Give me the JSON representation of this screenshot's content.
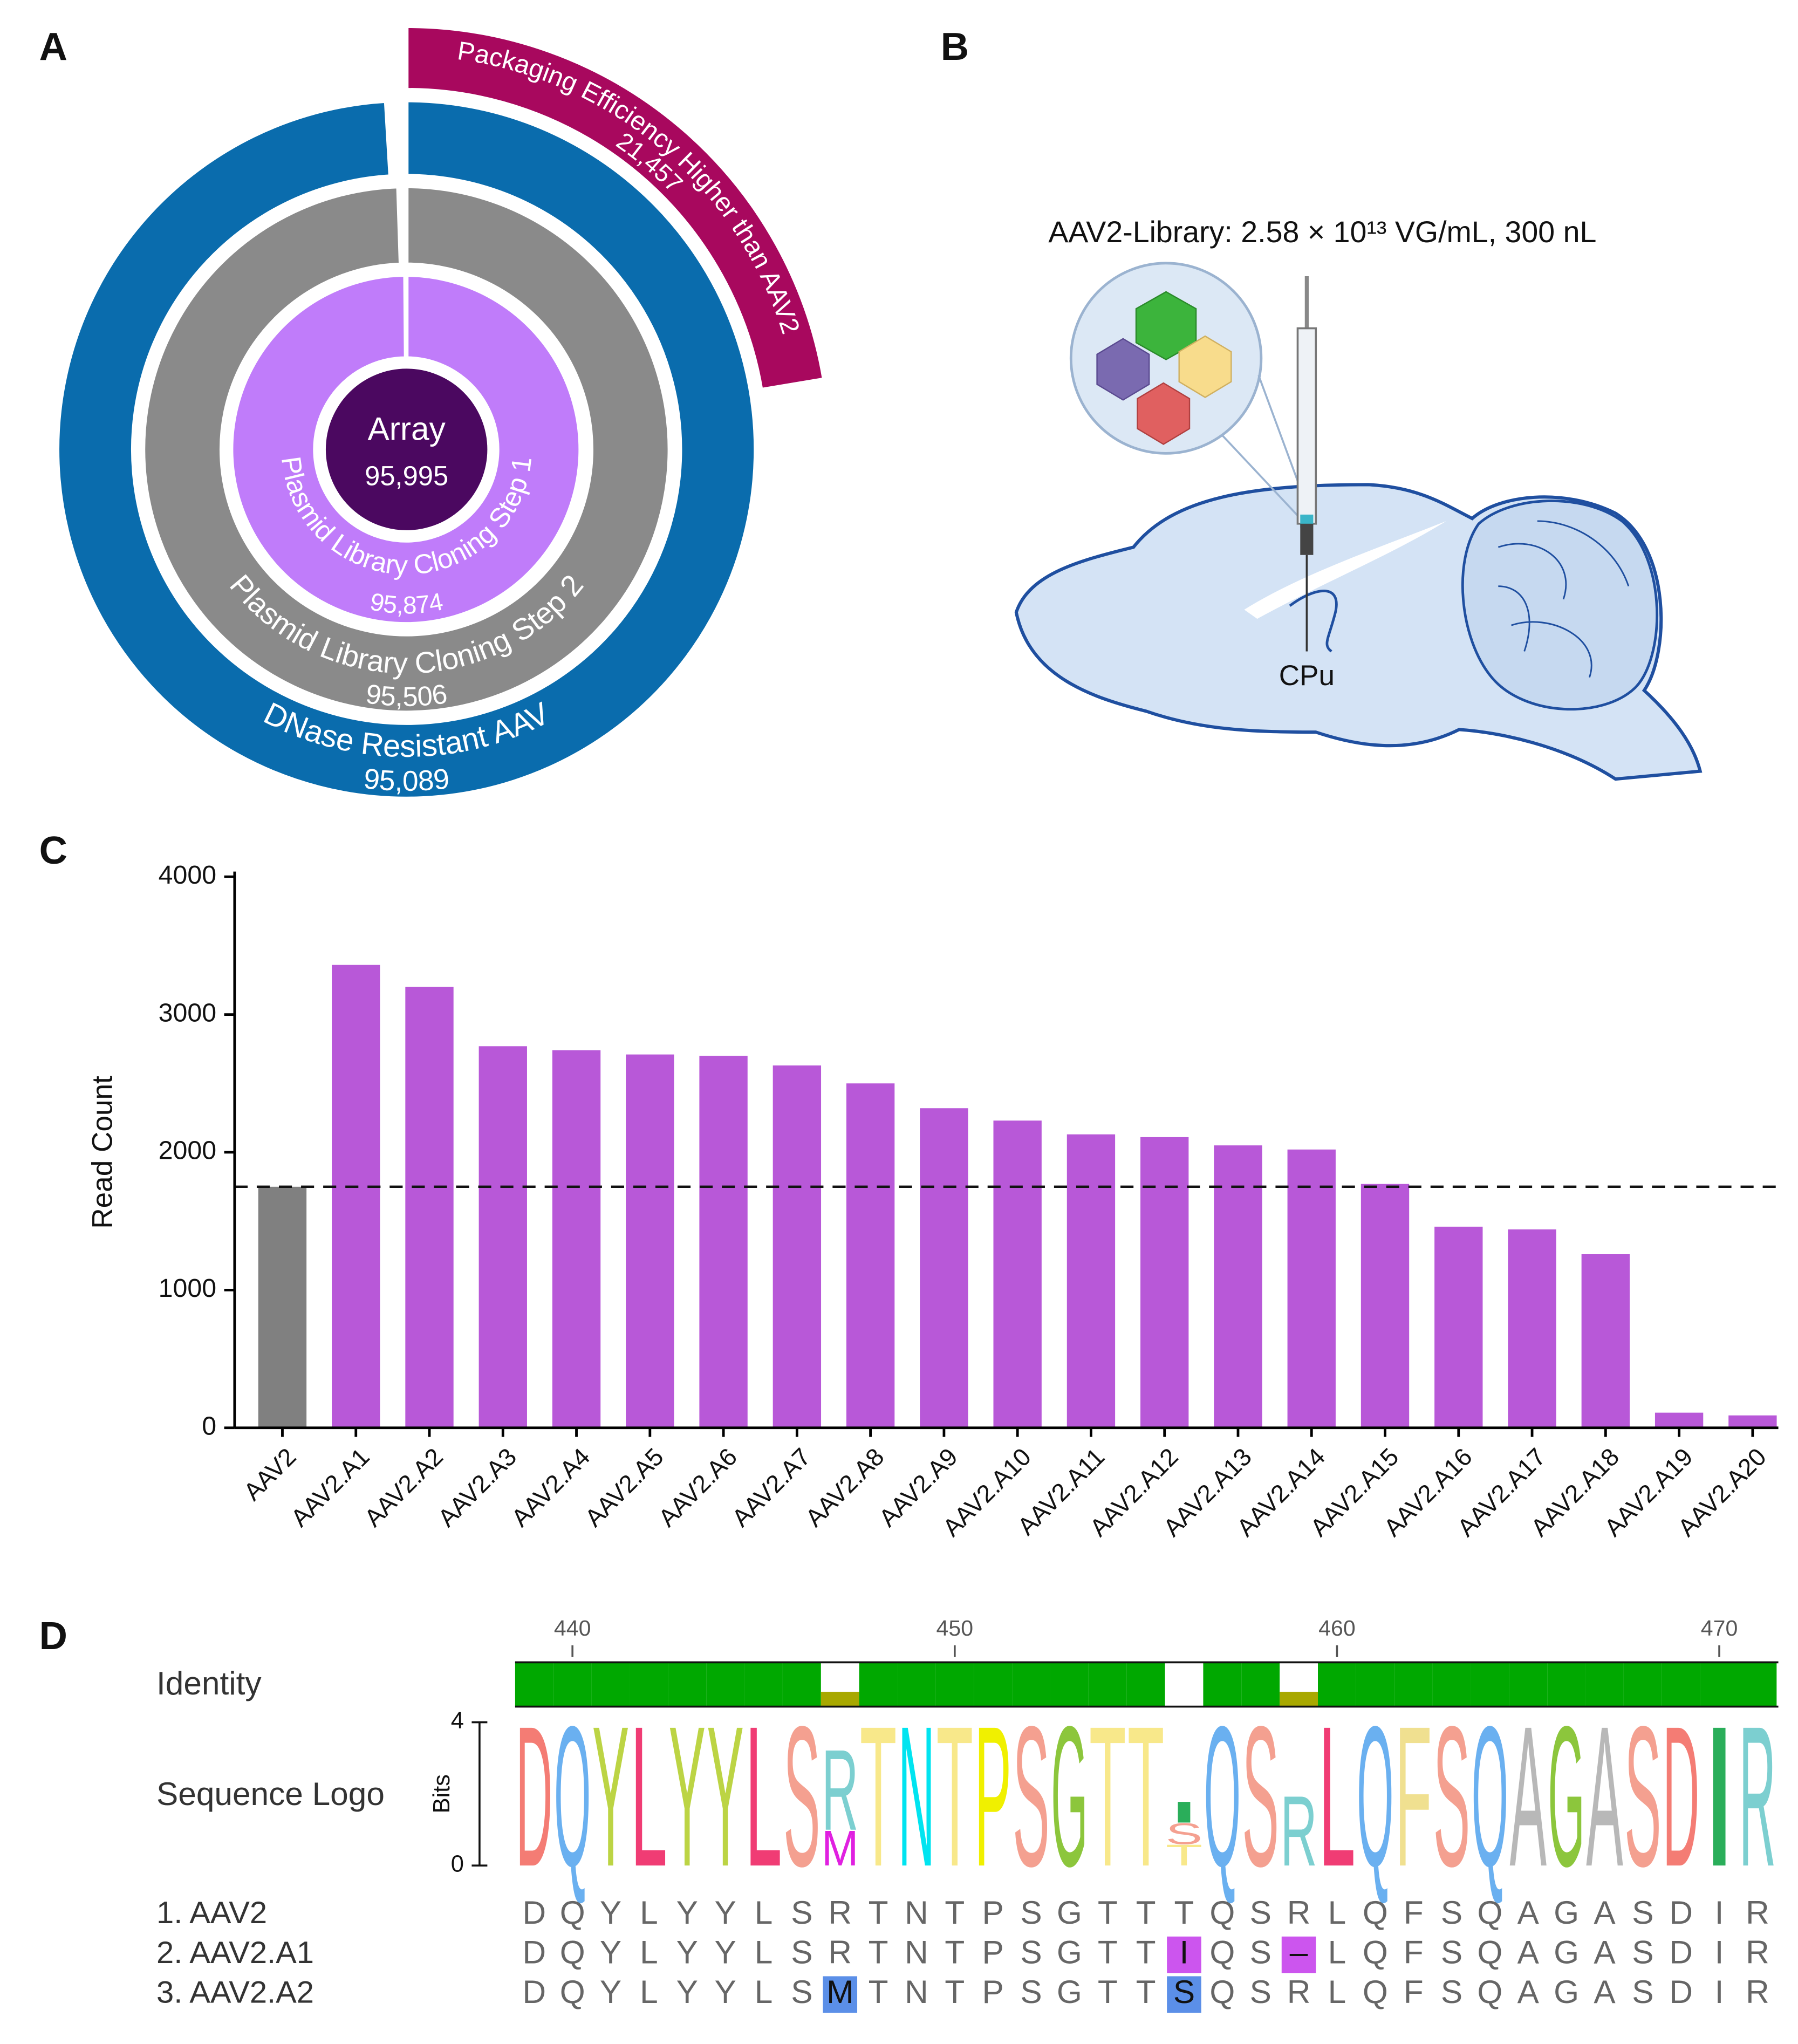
{
  "panel_labels": [
    "A",
    "B",
    "C",
    "D"
  ],
  "chart_data": [
    {
      "type": "sunburst",
      "labels": [
        "Array",
        "Plasmid Library Cloning Step 1",
        "Plasmid Library Cloning Step 2",
        "DNase Resistant AAV",
        "Packaging Efficiency Higher than AAV2"
      ],
      "values": [
        95995,
        95874,
        95506,
        95089,
        21457
      ],
      "value_labels": [
        "95,995",
        "95,874",
        "95,506",
        "95,089",
        "21,457"
      ],
      "colors": [
        "#4b0860",
        "#c07cfa",
        "#8a8a8a",
        "#0a6cad",
        "#a8085e"
      ]
    },
    {
      "type": "bar",
      "categories": [
        "AAV2",
        "AAV2.A1",
        "AAV2.A2",
        "AAV2.A3",
        "AAV2.A4",
        "AAV2.A5",
        "AAV2.A6",
        "AAV2.A7",
        "AAV2.A8",
        "AAV2.A9",
        "AAV2.A10",
        "AAV2.A11",
        "AAV2.A12",
        "AAV2.A13",
        "AAV2.A14",
        "AAV2.A15",
        "AAV2.A16",
        "AAV2.A17",
        "AAV2.A18",
        "AAV2.A19",
        "AAV2.A20"
      ],
      "values": [
        1750,
        3360,
        3200,
        2770,
        2740,
        2710,
        2700,
        2630,
        2500,
        2320,
        2230,
        2130,
        2110,
        2050,
        2020,
        1770,
        1460,
        1440,
        1260,
        110,
        90
      ],
      "colors": [
        "#808080",
        "#b858d8",
        "#b858d8",
        "#b858d8",
        "#b858d8",
        "#b858d8",
        "#b858d8",
        "#b858d8",
        "#b858d8",
        "#b858d8",
        "#b858d8",
        "#b858d8",
        "#b858d8",
        "#b858d8",
        "#b858d8",
        "#b858d8",
        "#b858d8",
        "#b858d8",
        "#b858d8",
        "#b858d8",
        "#b858d8"
      ],
      "ylabel": "Read Count",
      "ylim": [
        0,
        4000
      ],
      "yticks": [
        0,
        1000,
        2000,
        3000,
        4000
      ]
    }
  ],
  "diagram": {
    "label": "AAV2-Library: 2.58 × 10¹³ VG/mL, 300 nL",
    "region": "CPu"
  },
  "alignment": {
    "xlim": [
      439,
      471
    ],
    "xticks": [
      440,
      450,
      460,
      470
    ],
    "identity_label": "Identity",
    "logo_label": "Sequence Logo",
    "bits_label": "Bits",
    "identity": [
      100,
      100,
      100,
      100,
      100,
      100,
      100,
      100,
      33.3,
      100,
      100,
      100,
      100,
      100,
      100,
      100,
      100,
      0,
      100,
      100,
      33.3,
      100,
      100,
      100,
      100,
      100,
      100,
      100,
      100,
      100,
      100,
      100,
      100
    ],
    "identity_colors": {
      "full": "#00a800",
      "partial": "#a8a800"
    },
    "logo_ylim": [
      0,
      4
    ],
    "logo_yticks": [
      0,
      4
    ],
    "logo": [
      {
        "letters": [
          "D"
        ],
        "bits": [
          4
        ]
      },
      {
        "letters": [
          "Q"
        ],
        "bits": [
          4
        ]
      },
      {
        "letters": [
          "Y"
        ],
        "bits": [
          4
        ]
      },
      {
        "letters": [
          "L"
        ],
        "bits": [
          4
        ]
      },
      {
        "letters": [
          "Y"
        ],
        "bits": [
          4
        ]
      },
      {
        "letters": [
          "Y"
        ],
        "bits": [
          4
        ]
      },
      {
        "letters": [
          "L"
        ],
        "bits": [
          4
        ]
      },
      {
        "letters": [
          "S"
        ],
        "bits": [
          4
        ]
      },
      {
        "letters": [
          "M",
          "R"
        ],
        "bits": [
          1.0,
          2.3
        ]
      },
      {
        "letters": [
          "T"
        ],
        "bits": [
          4
        ]
      },
      {
        "letters": [
          "N"
        ],
        "bits": [
          4
        ]
      },
      {
        "letters": [
          "T"
        ],
        "bits": [
          4
        ]
      },
      {
        "letters": [
          "P"
        ],
        "bits": [
          4
        ]
      },
      {
        "letters": [
          "S"
        ],
        "bits": [
          4
        ]
      },
      {
        "letters": [
          "G"
        ],
        "bits": [
          4
        ]
      },
      {
        "letters": [
          "T"
        ],
        "bits": [
          4
        ]
      },
      {
        "letters": [
          "T"
        ],
        "bits": [
          4
        ]
      },
      {
        "letters": [
          "T",
          "S",
          "I"
        ],
        "bits": [
          0.6,
          0.6,
          0.6
        ]
      },
      {
        "letters": [
          "Q"
        ],
        "bits": [
          4
        ]
      },
      {
        "letters": [
          "S"
        ],
        "bits": [
          4
        ]
      },
      {
        "letters": [
          "R"
        ],
        "bits": [
          2.0
        ]
      },
      {
        "letters": [
          "L"
        ],
        "bits": [
          4
        ]
      },
      {
        "letters": [
          "Q"
        ],
        "bits": [
          4
        ]
      },
      {
        "letters": [
          "F"
        ],
        "bits": [
          4
        ]
      },
      {
        "letters": [
          "S"
        ],
        "bits": [
          4
        ]
      },
      {
        "letters": [
          "Q"
        ],
        "bits": [
          4
        ]
      },
      {
        "letters": [
          "A"
        ],
        "bits": [
          4
        ]
      },
      {
        "letters": [
          "G"
        ],
        "bits": [
          4
        ]
      },
      {
        "letters": [
          "A"
        ],
        "bits": [
          4
        ]
      },
      {
        "letters": [
          "S"
        ],
        "bits": [
          4
        ]
      },
      {
        "letters": [
          "D"
        ],
        "bits": [
          4
        ]
      },
      {
        "letters": [
          "I"
        ],
        "bits": [
          4
        ]
      },
      {
        "letters": [
          "R"
        ],
        "bits": [
          4
        ]
      }
    ],
    "letter_colors": {
      "D": "#f47c74",
      "Q": "#6ab0f0",
      "Y": "#bcd444",
      "L": "#f03c74",
      "S": "#f4a090",
      "R": "#7ccfd0",
      "T": "#f8e88a",
      "N": "#00e4f0",
      "P": "#f0f000",
      "G": "#8cc63c",
      "I": "#2aae5a",
      "M": "#e020e0",
      "A": "#b8b8b8",
      "F": "#f0e090"
    },
    "rows": [
      {
        "name": "1. AAV2",
        "residues": [
          "D",
          "Q",
          "Y",
          "L",
          "Y",
          "Y",
          "L",
          "S",
          "R",
          "T",
          "N",
          "T",
          "P",
          "S",
          "G",
          "T",
          "T",
          "T",
          "Q",
          "S",
          "R",
          "L",
          "Q",
          "F",
          "S",
          "Q",
          "A",
          "G",
          "A",
          "S",
          "D",
          "I",
          "R"
        ],
        "highlighted": [],
        "highlight_color": "#cc55ee"
      },
      {
        "name": "2. AAV2.A1",
        "residues": [
          "D",
          "Q",
          "Y",
          "L",
          "Y",
          "Y",
          "L",
          "S",
          "R",
          "T",
          "N",
          "T",
          "P",
          "S",
          "G",
          "T",
          "T",
          "I",
          "Q",
          "S",
          "–",
          "L",
          "Q",
          "F",
          "S",
          "Q",
          "A",
          "G",
          "A",
          "S",
          "D",
          "I",
          "R"
        ],
        "highlighted": [
          17,
          20
        ],
        "highlight_color": "#cc55ee"
      },
      {
        "name": "3. AAV2.A2",
        "residues": [
          "D",
          "Q",
          "Y",
          "L",
          "Y",
          "Y",
          "L",
          "S",
          "M",
          "T",
          "N",
          "T",
          "P",
          "S",
          "G",
          "T",
          "T",
          "S",
          "Q",
          "S",
          "R",
          "L",
          "Q",
          "F",
          "S",
          "Q",
          "A",
          "G",
          "A",
          "S",
          "D",
          "I",
          "R"
        ],
        "highlighted": [
          8,
          17
        ],
        "highlight_color": "#5b8fe8"
      }
    ]
  }
}
